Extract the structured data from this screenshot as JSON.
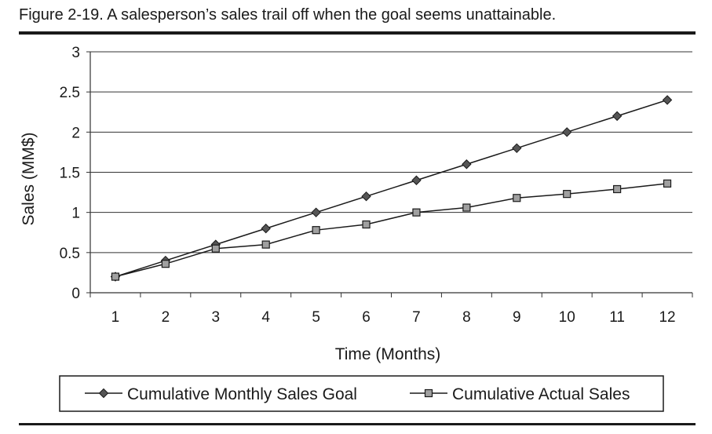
{
  "caption": "Figure 2-19.  A salesperson’s sales trail off when the goal seems unattainable.",
  "colors": {
    "goal_marker": "#555555",
    "actual_marker": "#a0a0a0",
    "line": "#1a1a1a"
  },
  "chart_data": {
    "type": "line",
    "title": "",
    "xlabel": "Time (Months)",
    "ylabel": "Sales (MM$)",
    "categories": [
      "1",
      "2",
      "3",
      "4",
      "5",
      "6",
      "7",
      "8",
      "9",
      "10",
      "11",
      "12"
    ],
    "ylim": [
      0,
      3
    ],
    "yticks": [
      "0",
      "0.5",
      "1",
      "1.5",
      "2",
      "2.5",
      "3"
    ],
    "grid": true,
    "legend_position": "bottom",
    "series": [
      {
        "name": "Cumulative Monthly Sales Goal",
        "marker": "diamond",
        "values": [
          0.2,
          0.4,
          0.6,
          0.8,
          1.0,
          1.2,
          1.4,
          1.6,
          1.8,
          2.0,
          2.2,
          2.4
        ]
      },
      {
        "name": "Cumulative Actual Sales",
        "marker": "square",
        "values": [
          0.2,
          0.36,
          0.55,
          0.6,
          0.78,
          0.85,
          1.0,
          1.06,
          1.18,
          1.23,
          1.29,
          1.36
        ]
      }
    ]
  }
}
